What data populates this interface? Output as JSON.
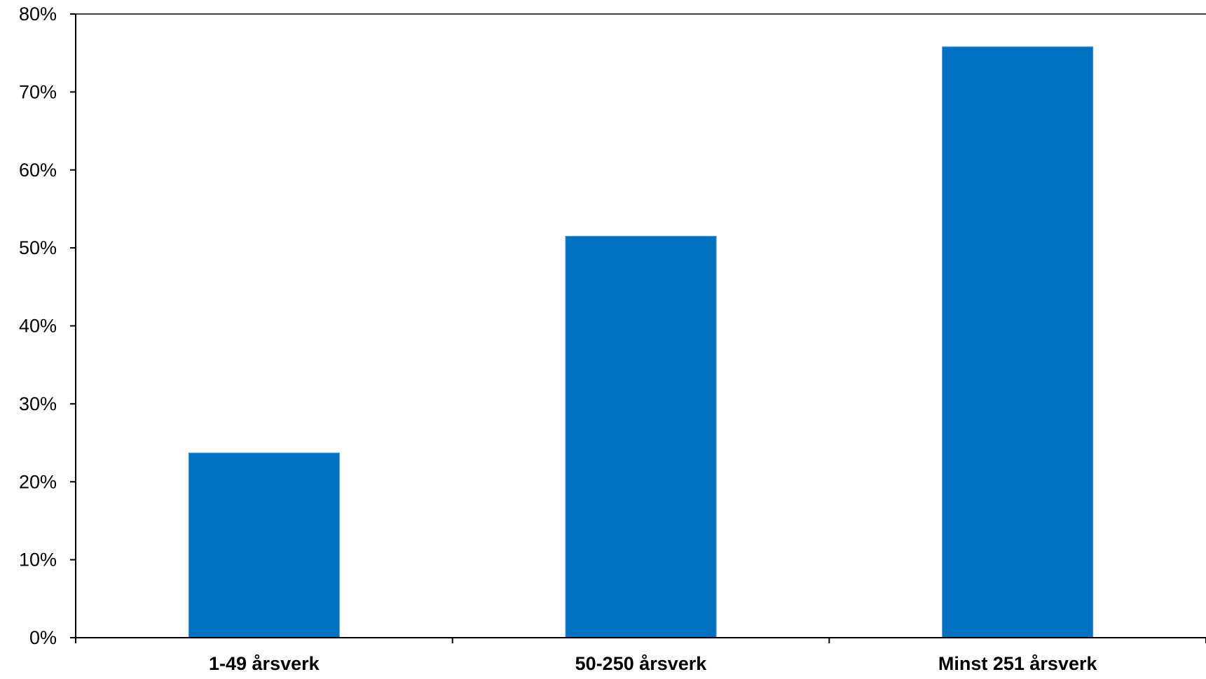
{
  "chart_data": {
    "type": "bar",
    "title": "",
    "xlabel": "",
    "ylabel": "",
    "categories": [
      "1-49 årsverk",
      "50-250 årsverk",
      "Minst 251 årsverk"
    ],
    "values": [
      23.7,
      51.5,
      75.8
    ],
    "ylim": [
      0,
      80
    ],
    "yticks": [
      0,
      10,
      20,
      30,
      40,
      50,
      60,
      70,
      80
    ],
    "ytick_labels": [
      "0%",
      "10%",
      "20%",
      "30%",
      "40%",
      "50%",
      "60%",
      "70%",
      "80%"
    ],
    "value_format": "percent",
    "grid": false,
    "legend": "none",
    "bar_color": "#0070C0",
    "axis_color": "#000000"
  }
}
